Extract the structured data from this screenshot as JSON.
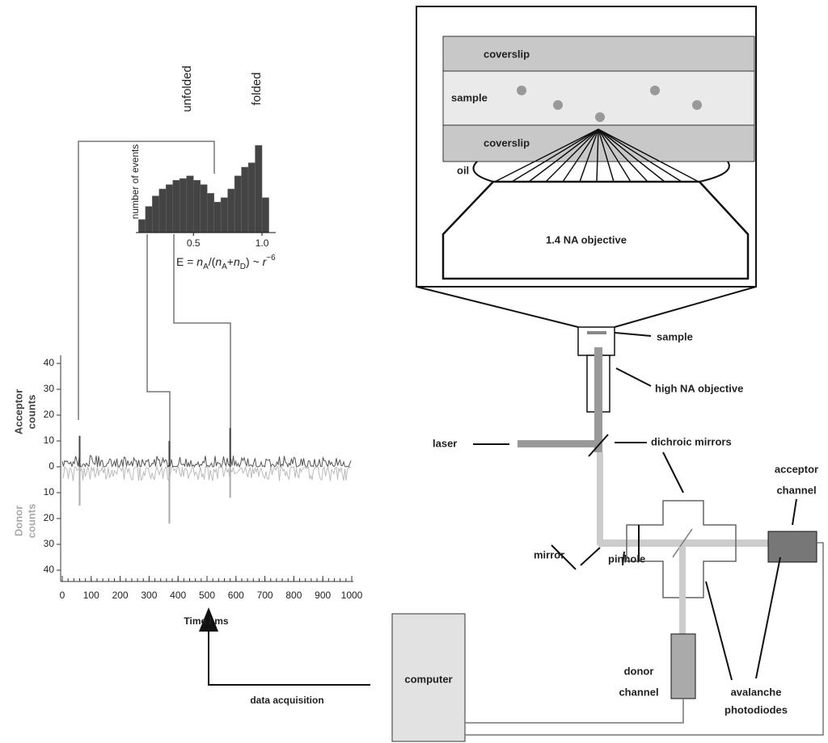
{
  "panel": {
    "coverslip_top": "coverslip",
    "sample": "sample",
    "coverslip_bottom": "coverslip",
    "oil": "oil",
    "objective": "1.4 NA objective"
  },
  "setup": {
    "sample": "sample",
    "objective": "high NA objective",
    "laser": "laser",
    "dichroic": "dichroic mirrors",
    "acceptor": [
      "acceptor",
      "channel"
    ],
    "mirror": "mirror",
    "pinhole": "pinhole",
    "donor": [
      "donor",
      "channel"
    ],
    "apd": [
      "avalanche",
      "photodiodes"
    ],
    "computer": "computer",
    "acquisition": "data acquisition"
  },
  "histogram": {
    "ylabel": "number of events",
    "peaks": [
      "unfolded",
      "folded"
    ],
    "bins": [
      0.1,
      0.15,
      0.2,
      0.25,
      0.3,
      0.35,
      0.4,
      0.45,
      0.5,
      0.55,
      0.6,
      0.65,
      0.7,
      0.75,
      0.8,
      0.85,
      0.9,
      0.95,
      1.0,
      1.05
    ],
    "counts": [
      15,
      30,
      42,
      50,
      55,
      60,
      62,
      65,
      60,
      55,
      45,
      35,
      40,
      50,
      65,
      75,
      80,
      100,
      40
    ],
    "xlim": [
      0.08,
      1.1
    ],
    "xticks": [
      0.5,
      {
        "value": 1,
        "label": "1.0"
      }
    ],
    "formula": [
      "E = ",
      "n",
      "A",
      "/(",
      "n",
      "A",
      "+",
      "n",
      "D",
      ") ~ ",
      "r",
      "−6"
    ]
  },
  "trace": {
    "xlabel": "Time / ms",
    "acceptor_label": [
      "Acceptor",
      "counts"
    ],
    "donor_label": [
      "Donor",
      "counts"
    ],
    "xlim": [
      0,
      1000
    ],
    "xticks": [
      0,
      100,
      200,
      300,
      400,
      500,
      600,
      700,
      800,
      900,
      1000
    ],
    "acceptor_yticks": [
      0,
      10,
      20,
      30,
      40
    ],
    "donor_yticks": [
      10,
      20,
      30,
      40
    ],
    "spikes": {
      "x": [
        60,
        370,
        580
      ],
      "acceptor": [
        12,
        10,
        15
      ],
      "donor": [
        15,
        22,
        12
      ]
    }
  }
}
